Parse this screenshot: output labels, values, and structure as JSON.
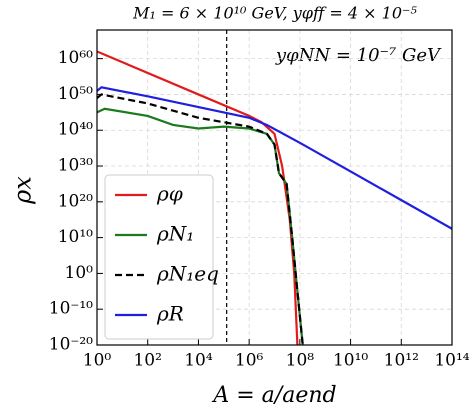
{
  "chart_data": {
    "type": "line",
    "title": "M₁ = 6 × 10¹⁰ GeV, yφff = 4 × 10⁻⁵",
    "annotation": "yφNN = 10⁻⁷ GeV",
    "xlabel": "A = a/aend",
    "ylabel": "ρx",
    "xscale": "log",
    "yscale": "log",
    "grid": true,
    "legend": "lower left",
    "xlim": [
      1,
      100000000000000.0
    ],
    "ylim": [
      1e-20,
      1e+68
    ],
    "xticks": [
      {
        "value": 1,
        "label": "10⁰"
      },
      {
        "value": 100.0,
        "label": "10²"
      },
      {
        "value": 10000.0,
        "label": "10⁴"
      },
      {
        "value": 1000000.0,
        "label": "10⁶"
      },
      {
        "value": 100000000.0,
        "label": "10⁸"
      },
      {
        "value": 10000000000.0,
        "label": "10¹⁰"
      },
      {
        "value": 1000000000000.0,
        "label": "10¹²"
      },
      {
        "value": 100000000000000.0,
        "label": "10¹⁴"
      }
    ],
    "yticks": [
      {
        "value": 1e-20,
        "label": "10⁻²⁰"
      },
      {
        "value": 1e-10,
        "label": "10⁻¹⁰"
      },
      {
        "value": 1,
        "label": "10⁰"
      },
      {
        "value": 10000000000.0,
        "label": "10¹⁰"
      },
      {
        "value": 1e+20,
        "label": "10²⁰"
      },
      {
        "value": 1e+30,
        "label": "10³⁰"
      },
      {
        "value": 1e+40,
        "label": "10⁴⁰"
      },
      {
        "value": 1e+50,
        "label": "10⁵⁰"
      },
      {
        "value": 1e+60,
        "label": "10⁶⁰"
      }
    ],
    "vline": 130000.0,
    "series": [
      {
        "name": "ρφ",
        "color": "#e31a1c",
        "linestyle": "solid",
        "x": [
          1,
          10000.0,
          1000000.0,
          3000000.0,
          10000000.0,
          20000000.0,
          40000000.0,
          60000000.0,
          80000000.0
        ],
        "values": [
          1e+62,
          1e+50,
          1e+44,
          2e+42,
          1e+39,
          1e+30,
          1000000000000000.0,
          1,
          1e-20
        ]
      },
      {
        "name": "ρN₁",
        "color": "#1b7a1b",
        "linestyle": "solid",
        "x": [
          1,
          2,
          100.0,
          1000.0,
          10000.0,
          100000.0,
          1000000.0,
          5000000.0,
          10000000.0,
          15000000.0,
          30000000.0,
          50000000.0,
          80000000.0,
          130000000.0
        ],
        "values": [
          1e+45,
          1e+46,
          1e+44,
          3e+41,
          3e+40,
          1e+41,
          3e+40,
          1e+39,
          1e+36,
          1e+28,
          1e+25,
          10000000000.0,
          1e-05,
          1e-20
        ]
      },
      {
        "name": "ρN₁eq",
        "color": "#000000",
        "linestyle": "dashed",
        "x": [
          1,
          1.5,
          100.0,
          10000.0,
          1000000.0,
          5000000.0,
          10000000.0,
          15000000.0,
          30000000.0,
          50000000.0,
          80000000.0,
          130000000.0
        ],
        "values": [
          1e+49,
          1e+50,
          3e+47,
          3e+43,
          1e+41,
          1e+39,
          1e+36,
          1e+28,
          1e+25,
          10000000000.0,
          1e-05,
          1e-20
        ]
      },
      {
        "name": "ρR",
        "color": "#1f1fe0",
        "linestyle": "solid",
        "x": [
          1,
          1.5,
          100.0,
          10000.0,
          1000000.0,
          5000000.0,
          100000000.0,
          10000000000.0,
          1000000000000.0,
          100000000000000.0
        ],
        "values": [
          1e+51,
          1e+52,
          3e+49,
          3e+46,
          3e+43,
          3e+41,
          3e+36,
          3e+28,
          3e+20,
          3000000000000.0
        ]
      }
    ]
  }
}
